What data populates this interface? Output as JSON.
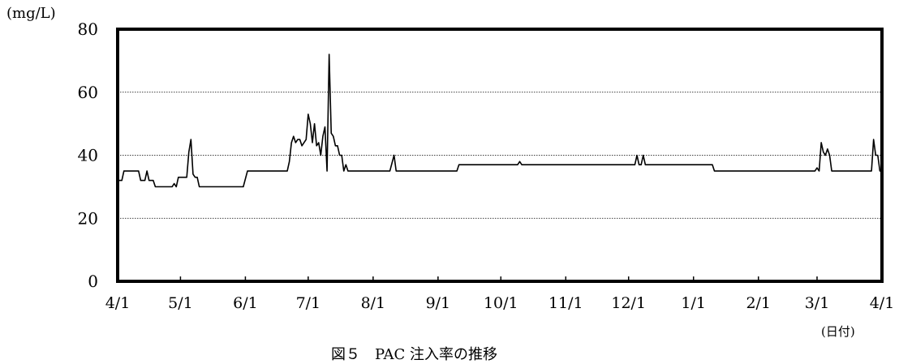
{
  "chart_data": {
    "type": "line",
    "title": "",
    "ylabel": "(mg/L)",
    "xlabel": "(日付)",
    "caption": "図５　PAC 注入率の推移",
    "ylim": [
      0,
      80
    ],
    "yticks": [
      0,
      20,
      40,
      60,
      80
    ],
    "y_gridlines": [
      20,
      40,
      60
    ],
    "grid": "horizontal dotted",
    "legend": "none",
    "x_start": "4/1",
    "xticks": [
      {
        "label": "4/1",
        "day": 0
      },
      {
        "label": "5/1",
        "day": 30
      },
      {
        "label": "6/1",
        "day": 61
      },
      {
        "label": "7/1",
        "day": 91
      },
      {
        "label": "8/1",
        "day": 122
      },
      {
        "label": "9/1",
        "day": 153
      },
      {
        "label": "10/1",
        "day": 183
      },
      {
        "label": "11/1",
        "day": 214
      },
      {
        "label": "12/1",
        "day": 244
      },
      {
        "label": "1/1",
        "day": 275
      },
      {
        "label": "2/1",
        "day": 306
      },
      {
        "label": "3/1",
        "day": 334
      },
      {
        "label": "4/1",
        "day": 365
      }
    ],
    "line_color": "#000000",
    "series": [
      {
        "points": [
          [
            0,
            32
          ],
          [
            2,
            32
          ],
          [
            3,
            35
          ],
          [
            10,
            35
          ],
          [
            11,
            32
          ],
          [
            13,
            32
          ],
          [
            14,
            35
          ],
          [
            15,
            32
          ],
          [
            17,
            32
          ],
          [
            18,
            30
          ],
          [
            26,
            30
          ],
          [
            27,
            31
          ],
          [
            28,
            30
          ],
          [
            29,
            33
          ],
          [
            33,
            33
          ],
          [
            34,
            41
          ],
          [
            35,
            45
          ],
          [
            36,
            34
          ],
          [
            37,
            33
          ],
          [
            38,
            33
          ],
          [
            39,
            30
          ],
          [
            60,
            30
          ],
          [
            62,
            35
          ],
          [
            81,
            35
          ],
          [
            82,
            38
          ],
          [
            83,
            44
          ],
          [
            84,
            46
          ],
          [
            85,
            44
          ],
          [
            86,
            45
          ],
          [
            87,
            45
          ],
          [
            88,
            43
          ],
          [
            89,
            44
          ],
          [
            90,
            45
          ],
          [
            91,
            53
          ],
          [
            92,
            50
          ],
          [
            93,
            44
          ],
          [
            94,
            50
          ],
          [
            95,
            43
          ],
          [
            96,
            44
          ],
          [
            97,
            40
          ],
          [
            98,
            46
          ],
          [
            99,
            49
          ],
          [
            100,
            35
          ],
          [
            101,
            72
          ],
          [
            102,
            47
          ],
          [
            103,
            46
          ],
          [
            104,
            43
          ],
          [
            105,
            43
          ],
          [
            106,
            40
          ],
          [
            107,
            40
          ],
          [
            108,
            35
          ],
          [
            109,
            37
          ],
          [
            110,
            35
          ],
          [
            130,
            35
          ],
          [
            132,
            40
          ],
          [
            133,
            35
          ],
          [
            162,
            35
          ],
          [
            163,
            37
          ],
          [
            191,
            37
          ],
          [
            192,
            38
          ],
          [
            193,
            37
          ],
          [
            247,
            37
          ],
          [
            248,
            40
          ],
          [
            249,
            37
          ],
          [
            250,
            37
          ],
          [
            251,
            40
          ],
          [
            252,
            37
          ],
          [
            284,
            37
          ],
          [
            285,
            35
          ],
          [
            333,
            35
          ],
          [
            334,
            36
          ],
          [
            335,
            35
          ],
          [
            336,
            44
          ],
          [
            337,
            41
          ],
          [
            338,
            40
          ],
          [
            339,
            42
          ],
          [
            340,
            40
          ],
          [
            341,
            35
          ],
          [
            360,
            35
          ],
          [
            361,
            45
          ],
          [
            362,
            40
          ],
          [
            363,
            40
          ],
          [
            364,
            35
          ],
          [
            365,
            35
          ]
        ]
      }
    ]
  }
}
